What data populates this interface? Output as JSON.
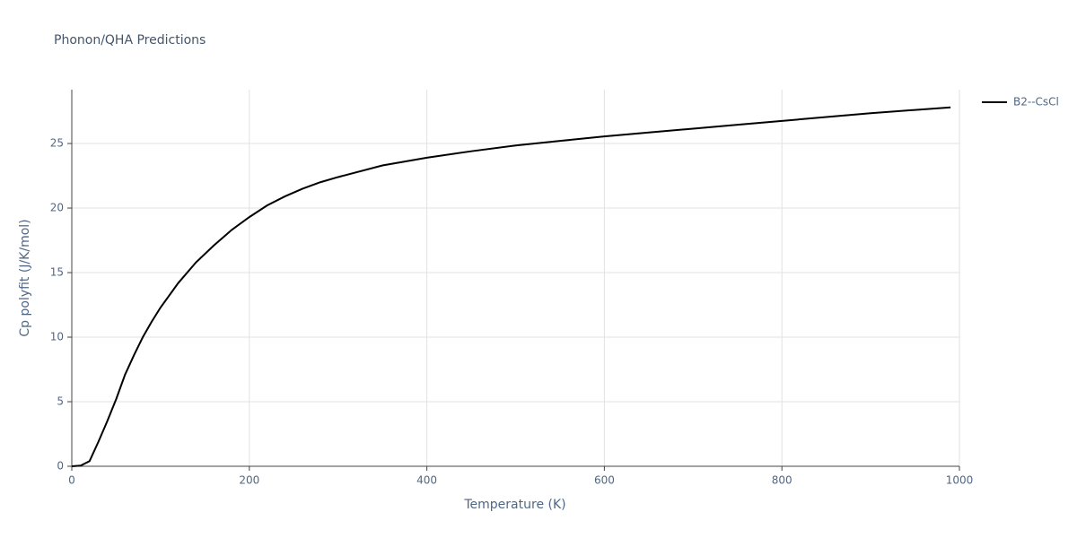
{
  "chart_data": {
    "type": "line",
    "title": "Phonon/QHA Predictions",
    "xlabel": "Temperature (K)",
    "ylabel": "Cp polyfit (J/K/mol)",
    "x": [
      0,
      10,
      20,
      30,
      40,
      50,
      60,
      70,
      80,
      90,
      100,
      120,
      140,
      160,
      180,
      200,
      220,
      240,
      260,
      280,
      300,
      350,
      400,
      450,
      500,
      550,
      600,
      650,
      700,
      750,
      800,
      850,
      900,
      950,
      990
    ],
    "series": [
      {
        "name": "B2--CsCl",
        "color": "#000000",
        "values": [
          0,
          0.05,
          0.4,
          1.9,
          3.5,
          5.2,
          7.1,
          8.6,
          10,
          11.2,
          12.3,
          14.2,
          15.8,
          17.1,
          18.3,
          19.3,
          20.2,
          20.9,
          21.5,
          22.0,
          22.4,
          23.3,
          23.9,
          24.4,
          24.85,
          25.2,
          25.55,
          25.85,
          26.15,
          26.45,
          26.75,
          27.05,
          27.35,
          27.6,
          27.8
        ]
      }
    ],
    "xlim": [
      0,
      1000
    ],
    "ylim": [
      0,
      29.17
    ],
    "xticks": [
      0,
      200,
      400,
      600,
      800,
      1000
    ],
    "yticks": [
      0,
      5,
      10,
      15,
      20,
      25
    ],
    "grid": true,
    "legend": "top-right"
  }
}
